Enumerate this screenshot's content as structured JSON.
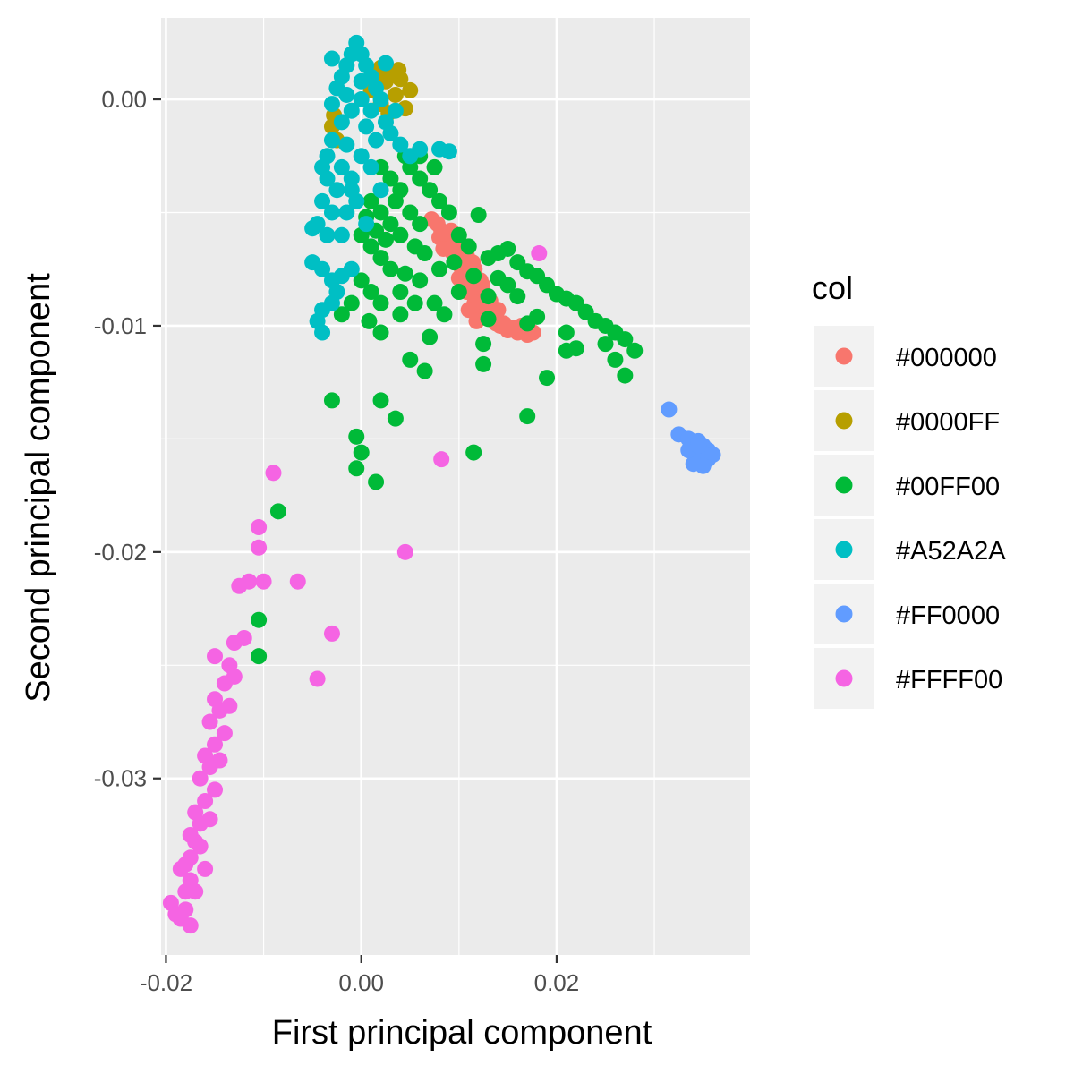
{
  "chart_data": {
    "type": "scatter",
    "xlabel": "First principal component",
    "ylabel": "Second principal component",
    "xlim": [
      -0.0205,
      0.0398
    ],
    "ylim": [
      -0.0378,
      0.0036
    ],
    "x_ticks": [
      -0.02,
      0.0,
      0.02
    ],
    "x_tick_labels": [
      "-0.02",
      "0.00",
      "0.02"
    ],
    "y_ticks": [
      0.0,
      -0.01,
      -0.02,
      -0.03
    ],
    "y_tick_labels": [
      "0.00",
      "-0.01",
      "-0.02",
      "-0.03"
    ],
    "grid": true,
    "legend": {
      "title": "col",
      "placement": "right"
    },
    "series": [
      {
        "name": "#000000",
        "color": "#F8766D",
        "points": [
          [
            0.0072,
            -0.0053
          ],
          [
            0.0078,
            -0.0055
          ],
          [
            0.0082,
            -0.0058
          ],
          [
            0.0086,
            -0.0061
          ],
          [
            0.009,
            -0.0064
          ],
          [
            0.0094,
            -0.0068
          ],
          [
            0.0098,
            -0.0071
          ],
          [
            0.0102,
            -0.0074
          ],
          [
            0.0106,
            -0.0077
          ],
          [
            0.011,
            -0.008
          ],
          [
            0.0114,
            -0.0083
          ],
          [
            0.0118,
            -0.0086
          ],
          [
            0.0122,
            -0.0089
          ],
          [
            0.0126,
            -0.0092
          ],
          [
            0.013,
            -0.0095
          ],
          [
            0.0134,
            -0.0097
          ],
          [
            0.0138,
            -0.0099
          ],
          [
            0.0142,
            -0.01
          ],
          [
            0.015,
            -0.0102
          ],
          [
            0.016,
            -0.0103
          ],
          [
            0.017,
            -0.0104
          ],
          [
            0.0088,
            -0.006
          ],
          [
            0.0096,
            -0.0066
          ],
          [
            0.0104,
            -0.0072
          ],
          [
            0.0112,
            -0.0079
          ],
          [
            0.012,
            -0.0085
          ],
          [
            0.0128,
            -0.0091
          ],
          [
            0.0136,
            -0.0096
          ],
          [
            0.0146,
            -0.0099
          ],
          [
            0.0156,
            -0.0101
          ],
          [
            0.01,
            -0.0079
          ],
          [
            0.0108,
            -0.0085
          ],
          [
            0.0116,
            -0.009
          ],
          [
            0.0124,
            -0.0096
          ],
          [
            0.011,
            -0.0093
          ],
          [
            0.0092,
            -0.0058
          ],
          [
            0.01,
            -0.0063
          ],
          [
            0.0108,
            -0.0069
          ],
          [
            0.0116,
            -0.0075
          ],
          [
            0.0124,
            -0.0082
          ],
          [
            0.0132,
            -0.0089
          ],
          [
            0.014,
            -0.0093
          ],
          [
            0.008,
            -0.0061
          ],
          [
            0.0084,
            -0.0066
          ],
          [
            0.0118,
            -0.0098
          ],
          [
            0.0164,
            -0.01
          ],
          [
            0.0176,
            -0.0103
          ],
          [
            0.0122,
            -0.008
          ],
          [
            0.0114,
            -0.0072
          ],
          [
            0.0106,
            -0.0066
          ]
        ]
      },
      {
        "name": "#0000FF",
        "color": "#B79F00",
        "points": [
          [
            0.003,
            0.0012
          ],
          [
            0.004,
            0.0009
          ],
          [
            0.005,
            0.0004
          ],
          [
            0.0025,
            0.0008
          ],
          [
            0.0015,
            0.001
          ],
          [
            0.0035,
            0.0002
          ],
          [
            0.0045,
            -0.0004
          ],
          [
            0.002,
            -0.0002
          ],
          [
            0.001,
            0.0004
          ],
          [
            0.0028,
            -0.0006
          ],
          [
            -0.003,
            -0.0012
          ],
          [
            -0.0025,
            -0.0018
          ],
          [
            -0.0028,
            -0.0007
          ],
          [
            0.0038,
            0.0013
          ],
          [
            0.002,
            0.0014
          ]
        ]
      },
      {
        "name": "#00FF00",
        "color": "#00BA38",
        "points": [
          [
            0.002,
            -0.003
          ],
          [
            0.003,
            -0.0035
          ],
          [
            0.004,
            -0.004
          ],
          [
            0.005,
            -0.003
          ],
          [
            0.006,
            -0.0035
          ],
          [
            0.007,
            -0.004
          ],
          [
            0.008,
            -0.0045
          ],
          [
            0.001,
            -0.0045
          ],
          [
            0.002,
            -0.005
          ],
          [
            0.003,
            -0.0055
          ],
          [
            0.004,
            -0.006
          ],
          [
            0.005,
            -0.005
          ],
          [
            0.006,
            -0.0055
          ],
          [
            0.0,
            -0.006
          ],
          [
            0.001,
            -0.0065
          ],
          [
            0.002,
            -0.007
          ],
          [
            0.003,
            -0.0075
          ],
          [
            0.0,
            -0.008
          ],
          [
            0.001,
            -0.0085
          ],
          [
            -0.001,
            -0.009
          ],
          [
            -0.002,
            -0.0095
          ],
          [
            0.002,
            -0.009
          ],
          [
            0.004,
            -0.0085
          ],
          [
            0.006,
            -0.008
          ],
          [
            0.008,
            -0.0075
          ],
          [
            0.009,
            -0.005
          ],
          [
            0.01,
            -0.006
          ],
          [
            0.011,
            -0.0065
          ],
          [
            0.013,
            -0.007
          ],
          [
            0.014,
            -0.0068
          ],
          [
            0.015,
            -0.0066
          ],
          [
            0.016,
            -0.0072
          ],
          [
            0.017,
            -0.0076
          ],
          [
            0.018,
            -0.0078
          ],
          [
            0.019,
            -0.0082
          ],
          [
            0.02,
            -0.0086
          ],
          [
            0.021,
            -0.0088
          ],
          [
            0.022,
            -0.009
          ],
          [
            0.023,
            -0.0094
          ],
          [
            0.024,
            -0.0098
          ],
          [
            0.025,
            -0.01
          ],
          [
            0.026,
            -0.0103
          ],
          [
            0.027,
            -0.0106
          ],
          [
            0.028,
            -0.0111
          ],
          [
            0.027,
            -0.0122
          ],
          [
            0.026,
            -0.0115
          ],
          [
            0.022,
            -0.011
          ],
          [
            0.021,
            -0.0111
          ],
          [
            0.018,
            -0.0096
          ],
          [
            0.017,
            -0.0099
          ],
          [
            0.016,
            -0.0087
          ],
          [
            0.015,
            -0.0082
          ],
          [
            0.014,
            -0.0079
          ],
          [
            0.013,
            -0.0087
          ],
          [
            0.0125,
            -0.0108
          ],
          [
            0.0125,
            -0.0117
          ],
          [
            0.013,
            -0.0097
          ],
          [
            0.019,
            -0.0123
          ],
          [
            0.017,
            -0.014
          ],
          [
            0.021,
            -0.0103
          ],
          [
            0.012,
            -0.0051
          ],
          [
            0.0045,
            -0.0077
          ],
          [
            0.0055,
            -0.009
          ],
          [
            0.007,
            -0.0105
          ],
          [
            0.004,
            -0.0095
          ],
          [
            0.005,
            -0.0115
          ],
          [
            0.002,
            -0.0103
          ],
          [
            0.0008,
            -0.0098
          ],
          [
            -0.003,
            -0.0133
          ],
          [
            0.002,
            -0.0133
          ],
          [
            0.0035,
            -0.0141
          ],
          [
            -0.0005,
            -0.0149
          ],
          [
            0.0,
            -0.0156
          ],
          [
            -0.0005,
            -0.0163
          ],
          [
            0.0015,
            -0.0169
          ],
          [
            0.0115,
            -0.0156
          ],
          [
            -0.0085,
            -0.0182
          ],
          [
            -0.0105,
            -0.023
          ],
          [
            -0.0105,
            -0.0246
          ],
          [
            0.0075,
            -0.009
          ],
          [
            0.0065,
            -0.012
          ],
          [
            0.0085,
            -0.0095
          ],
          [
            0.01,
            -0.0085
          ],
          [
            0.0115,
            -0.0078
          ],
          [
            0.0095,
            -0.0072
          ],
          [
            0.0045,
            -0.0025
          ],
          [
            0.006,
            -0.0025
          ],
          [
            0.0075,
            -0.003
          ],
          [
            0.0035,
            -0.0045
          ],
          [
            0.0005,
            -0.0052
          ],
          [
            0.0015,
            -0.0058
          ],
          [
            0.0025,
            -0.0062
          ],
          [
            0.0055,
            -0.0065
          ],
          [
            0.0065,
            -0.0068
          ],
          [
            0.025,
            -0.0108
          ]
        ]
      },
      {
        "name": "#A52A2A",
        "color": "#00BFC4",
        "points": [
          [
            -0.0005,
            0.0025
          ],
          [
            0.0,
            0.002
          ],
          [
            -0.001,
            0.002
          ],
          [
            -0.0015,
            0.0015
          ],
          [
            0.0005,
            0.0015
          ],
          [
            0.001,
            0.001
          ],
          [
            -0.002,
            0.001
          ],
          [
            -0.0025,
            0.0005
          ],
          [
            0.0015,
            0.0005
          ],
          [
            0.002,
            0.0
          ],
          [
            -0.003,
            -0.0002
          ],
          [
            -0.0015,
            0.0002
          ],
          [
            0.0,
            0.0
          ],
          [
            0.001,
            -0.0005
          ],
          [
            0.0025,
            -0.001
          ],
          [
            -0.002,
            -0.001
          ],
          [
            0.003,
            -0.0015
          ],
          [
            -0.003,
            -0.0018
          ],
          [
            0.004,
            -0.002
          ],
          [
            -0.0015,
            -0.002
          ],
          [
            0.0,
            -0.0025
          ],
          [
            0.005,
            -0.0025
          ],
          [
            -0.0035,
            -0.0025
          ],
          [
            0.006,
            -0.0022
          ],
          [
            0.008,
            -0.0022
          ],
          [
            0.009,
            -0.0023
          ],
          [
            -0.004,
            -0.003
          ],
          [
            -0.002,
            -0.003
          ],
          [
            0.001,
            -0.003
          ],
          [
            -0.0035,
            -0.0035
          ],
          [
            -0.0025,
            -0.004
          ],
          [
            -0.001,
            -0.004
          ],
          [
            0.002,
            -0.004
          ],
          [
            -0.004,
            -0.0045
          ],
          [
            -0.003,
            -0.005
          ],
          [
            -0.0015,
            -0.005
          ],
          [
            -0.0045,
            -0.0055
          ],
          [
            -0.0035,
            -0.006
          ],
          [
            -0.002,
            -0.006
          ],
          [
            -0.005,
            -0.0057
          ],
          [
            -0.005,
            -0.0072
          ],
          [
            -0.004,
            -0.0075
          ],
          [
            -0.003,
            -0.008
          ],
          [
            -0.002,
            -0.0078
          ],
          [
            -0.001,
            -0.0075
          ],
          [
            -0.003,
            -0.009
          ],
          [
            -0.004,
            -0.0093
          ],
          [
            -0.0045,
            -0.0098
          ],
          [
            -0.004,
            -0.0103
          ],
          [
            -0.0025,
            -0.0085
          ],
          [
            -0.001,
            -0.0005
          ],
          [
            0.0005,
            -0.0012
          ],
          [
            -0.0005,
            -0.0045
          ],
          [
            0.0015,
            -0.0018
          ],
          [
            0.0035,
            -0.0005
          ],
          [
            -0.003,
            0.0018
          ],
          [
            0.0025,
            0.0016
          ],
          [
            0.0,
            0.0008
          ],
          [
            -0.001,
            -0.0035
          ],
          [
            0.0005,
            -0.0055
          ]
        ]
      },
      {
        "name": "#FF0000",
        "color": "#619CFF",
        "points": [
          [
            0.0315,
            -0.0137
          ],
          [
            0.0325,
            -0.0148
          ],
          [
            0.0335,
            -0.015
          ],
          [
            0.0345,
            -0.0151
          ],
          [
            0.035,
            -0.0153
          ],
          [
            0.0355,
            -0.0155
          ],
          [
            0.034,
            -0.0156
          ],
          [
            0.0345,
            -0.0158
          ],
          [
            0.035,
            -0.016
          ],
          [
            0.0355,
            -0.0159
          ],
          [
            0.036,
            -0.0157
          ],
          [
            0.034,
            -0.0161
          ],
          [
            0.035,
            -0.0162
          ],
          [
            0.0335,
            -0.0155
          ],
          [
            0.0345,
            -0.0153
          ]
        ]
      },
      {
        "name": "#FFFF00",
        "color": "#F564E3",
        "points": [
          [
            -0.0195,
            -0.0355
          ],
          [
            -0.019,
            -0.036
          ],
          [
            -0.0185,
            -0.0362
          ],
          [
            -0.018,
            -0.0358
          ],
          [
            -0.018,
            -0.035
          ],
          [
            -0.0175,
            -0.0345
          ],
          [
            -0.0185,
            -0.034
          ],
          [
            -0.0175,
            -0.0335
          ],
          [
            -0.017,
            -0.0328
          ],
          [
            -0.0165,
            -0.032
          ],
          [
            -0.017,
            -0.0315
          ],
          [
            -0.016,
            -0.031
          ],
          [
            -0.0165,
            -0.03
          ],
          [
            -0.0155,
            -0.0295
          ],
          [
            -0.016,
            -0.029
          ],
          [
            -0.015,
            -0.0285
          ],
          [
            -0.0155,
            -0.0275
          ],
          [
            -0.0145,
            -0.027
          ],
          [
            -0.015,
            -0.0265
          ],
          [
            -0.014,
            -0.0258
          ],
          [
            -0.0135,
            -0.025
          ],
          [
            -0.015,
            -0.0246
          ],
          [
            -0.013,
            -0.024
          ],
          [
            -0.012,
            -0.0238
          ],
          [
            -0.0125,
            -0.0215
          ],
          [
            -0.0115,
            -0.0213
          ],
          [
            -0.01,
            -0.0213
          ],
          [
            -0.0105,
            -0.0198
          ],
          [
            -0.0105,
            -0.0189
          ],
          [
            -0.009,
            -0.0165
          ],
          [
            -0.0065,
            -0.0213
          ],
          [
            -0.003,
            -0.0236
          ],
          [
            -0.0045,
            -0.0256
          ],
          [
            0.0045,
            -0.02
          ],
          [
            0.0082,
            -0.0159
          ],
          [
            0.0182,
            -0.0068
          ],
          [
            -0.0175,
            -0.0365
          ],
          [
            -0.017,
            -0.035
          ],
          [
            -0.016,
            -0.034
          ],
          [
            -0.0165,
            -0.033
          ],
          [
            -0.0155,
            -0.0318
          ],
          [
            -0.015,
            -0.0305
          ],
          [
            -0.0145,
            -0.0292
          ],
          [
            -0.014,
            -0.028
          ],
          [
            -0.0135,
            -0.0268
          ],
          [
            -0.013,
            -0.0255
          ],
          [
            -0.018,
            -0.0338
          ],
          [
            -0.0175,
            -0.0325
          ]
        ]
      }
    ]
  }
}
